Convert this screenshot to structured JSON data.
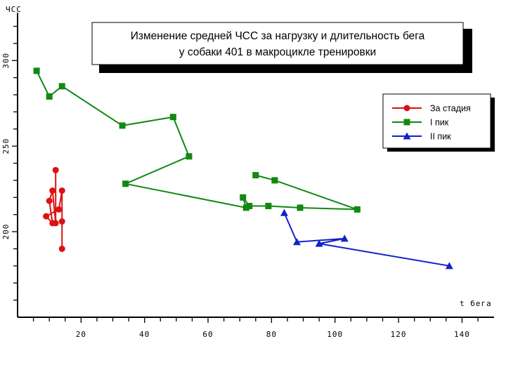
{
  "chart_data": {
    "type": "line",
    "title_lines": [
      "Изменение средней ЧСС за нагрузку и длительность бега",
      "у собаки 401 в макроцикле тренировки"
    ],
    "ylabel": "ЧСС",
    "xlabel": "t бега",
    "xlim": [
      0,
      145
    ],
    "ylim": [
      150,
      328
    ],
    "x_ticks": [
      20,
      40,
      60,
      80,
      100,
      120,
      140
    ],
    "y_ticks": [
      200,
      250,
      300
    ],
    "grid": false,
    "legend_position": "top-right",
    "series": [
      {
        "name": "За стадия",
        "color": "#dd1111",
        "marker": "circle",
        "points": [
          [
            12,
            236
          ],
          [
            12,
            205
          ],
          [
            11,
            224
          ],
          [
            10,
            218
          ],
          [
            11,
            205
          ],
          [
            9,
            209
          ],
          [
            13,
            213
          ],
          [
            14,
            224
          ],
          [
            14,
            206
          ],
          [
            14,
            190
          ]
        ]
      },
      {
        "name": "I пик",
        "color": "#118811",
        "marker": "square",
        "points": [
          [
            6,
            294
          ],
          [
            10,
            279
          ],
          [
            14,
            285
          ],
          [
            33,
            262
          ],
          [
            49,
            267
          ],
          [
            54,
            244
          ],
          [
            34,
            228
          ],
          [
            72,
            214
          ],
          [
            71,
            220
          ],
          [
            73,
            215
          ],
          [
            79,
            215
          ],
          [
            89,
            214
          ],
          [
            107,
            213
          ],
          [
            81,
            230
          ],
          [
            75,
            233
          ]
        ]
      },
      {
        "name": "II пик",
        "color": "#1122cc",
        "marker": "triangle",
        "points": [
          [
            84,
            211
          ],
          [
            88,
            194
          ],
          [
            103,
            196
          ],
          [
            95,
            193
          ],
          [
            136,
            180
          ]
        ]
      }
    ]
  }
}
